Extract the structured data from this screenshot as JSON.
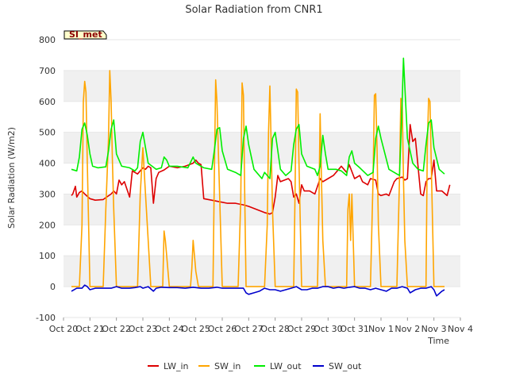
{
  "chart_data": {
    "type": "line",
    "title": "Solar Radiation from CNR1",
    "badge": "SI_met",
    "xlabel": "Time",
    "ylabel": "Solar Radiation (W/m2)",
    "xlim": [
      0,
      15
    ],
    "ylim": [
      -100,
      800
    ],
    "x_tick_labels": [
      "Oct 20",
      "Oct 21",
      "Oct 22",
      "Oct 23",
      "Oct 24",
      "Oct 25",
      "Oct 26",
      "Oct 27",
      "Oct 28",
      "Oct 29",
      "Oct 30",
      "Oct 31",
      "Nov 1",
      "Nov 2",
      "Nov 3",
      "Nov 4"
    ],
    "y_ticks": [
      -100,
      0,
      100,
      200,
      300,
      400,
      500,
      600,
      700,
      800
    ],
    "grid": "horizontal bands",
    "legend_position": "bottom",
    "colors": {
      "LW_in": "#dd0000",
      "SW_in": "#ffa500",
      "LW_out": "#00ee00",
      "SW_out": "#0000cc",
      "band": "#f0f0f0",
      "badge_fill": "#ffffcc"
    },
    "series": [
      {
        "name": "LW_in",
        "x": [
          0.3,
          0.35,
          0.45,
          0.5,
          0.6,
          0.7,
          0.8,
          1.0,
          1.2,
          1.5,
          1.8,
          1.9,
          2.0,
          2.1,
          2.2,
          2.3,
          2.5,
          2.6,
          2.8,
          3.0,
          3.1,
          3.2,
          3.3,
          3.4,
          3.5,
          3.6,
          3.8,
          4.0,
          4.3,
          4.6,
          4.9,
          5.0,
          5.1,
          5.2,
          5.3,
          5.6,
          5.9,
          6.2,
          6.5,
          6.8,
          7.0,
          7.3,
          7.6,
          7.8,
          7.9,
          8.0,
          8.1,
          8.2,
          8.5,
          8.6,
          8.7,
          8.8,
          8.9,
          9.0,
          9.1,
          9.3,
          9.5,
          9.7,
          9.8,
          10.0,
          10.2,
          10.4,
          10.5,
          10.6,
          10.7,
          10.8,
          11.0,
          11.2,
          11.3,
          11.5,
          11.6,
          11.8,
          11.9,
          12.0,
          12.2,
          12.3,
          12.5,
          12.6,
          12.8,
          12.9,
          13.0,
          13.1,
          13.2,
          13.3,
          13.5,
          13.6,
          13.7,
          13.8,
          13.9,
          14.0,
          14.1,
          14.3,
          14.5,
          14.6
        ],
        "y": [
          295,
          300,
          325,
          290,
          305,
          310,
          300,
          285,
          280,
          282,
          300,
          310,
          300,
          345,
          330,
          340,
          290,
          375,
          365,
          385,
          380,
          390,
          385,
          270,
          350,
          370,
          378,
          390,
          385,
          390,
          400,
          410,
          400,
          395,
          285,
          280,
          275,
          270,
          270,
          265,
          260,
          250,
          240,
          235,
          240,
          290,
          360,
          340,
          350,
          340,
          290,
          300,
          270,
          330,
          310,
          310,
          300,
          350,
          340,
          350,
          360,
          380,
          390,
          380,
          370,
          395,
          350,
          360,
          340,
          330,
          350,
          345,
          300,
          295,
          300,
          295,
          340,
          350,
          355,
          345,
          350,
          525,
          470,
          480,
          300,
          295,
          340,
          350,
          350,
          410,
          310,
          310,
          295,
          330
        ]
      },
      {
        "name": "SW_in",
        "x": [
          0.3,
          0.6,
          0.7,
          0.75,
          0.8,
          0.85,
          0.9,
          1.0,
          1.1,
          1.3,
          1.5,
          1.6,
          1.7,
          1.75,
          1.8,
          1.85,
          1.9,
          2.0,
          2.1,
          2.2,
          2.3,
          2.5,
          2.6,
          2.8,
          2.9,
          3.0,
          3.1,
          3.2,
          3.3,
          3.5,
          3.6,
          3.7,
          3.75,
          3.8,
          3.85,
          3.9,
          4.0,
          4.2,
          4.5,
          4.7,
          4.8,
          4.85,
          4.9,
          5.0,
          5.1,
          5.2,
          5.3,
          5.5,
          5.6,
          5.65,
          5.7,
          5.75,
          5.8,
          6.0,
          6.4,
          6.6,
          6.7,
          6.75,
          6.8,
          6.85,
          6.9,
          7.0,
          7.2,
          7.4,
          7.6,
          7.7,
          7.75,
          7.8,
          7.85,
          7.9,
          8.0,
          8.2,
          8.4,
          8.6,
          8.7,
          8.75,
          8.8,
          8.85,
          8.9,
          9.0,
          9.2,
          9.5,
          9.6,
          9.65,
          9.7,
          9.75,
          9.8,
          9.9,
          10.0,
          10.3,
          10.5,
          10.7,
          10.75,
          10.8,
          10.85,
          10.9,
          11.0,
          11.2,
          11.4,
          11.6,
          11.7,
          11.75,
          11.8,
          11.85,
          11.9,
          12.0,
          12.2,
          12.4,
          12.6,
          12.7,
          12.75,
          12.8,
          12.85,
          12.9,
          13.0,
          13.2,
          13.4,
          13.6,
          13.7,
          13.75,
          13.8,
          13.85,
          13.9,
          14.0,
          14.2,
          14.4
        ],
        "y": [
          0,
          0,
          200,
          600,
          665,
          630,
          400,
          0,
          0,
          0,
          0,
          250,
          480,
          700,
          600,
          400,
          250,
          0,
          0,
          0,
          0,
          0,
          0,
          0,
          300,
          450,
          300,
          150,
          0,
          0,
          0,
          0,
          0,
          180,
          150,
          100,
          0,
          0,
          0,
          0,
          0,
          60,
          150,
          50,
          0,
          0,
          0,
          0,
          0,
          0,
          350,
          670,
          600,
          0,
          0,
          0,
          280,
          660,
          620,
          300,
          0,
          0,
          0,
          0,
          0,
          200,
          500,
          650,
          450,
          250,
          0,
          0,
          0,
          0,
          0,
          300,
          640,
          630,
          400,
          0,
          0,
          0,
          0,
          250,
          560,
          350,
          150,
          0,
          0,
          0,
          0,
          0,
          250,
          300,
          150,
          300,
          0,
          0,
          0,
          0,
          350,
          620,
          625,
          450,
          200,
          0,
          0,
          0,
          0,
          350,
          610,
          600,
          350,
          150,
          0,
          0,
          0,
          0,
          0,
          450,
          610,
          600,
          400,
          0,
          0,
          0
        ]
      },
      {
        "name": "LW_out",
        "x": [
          0.3,
          0.5,
          0.6,
          0.7,
          0.8,
          0.9,
          1.0,
          1.1,
          1.3,
          1.6,
          1.7,
          1.8,
          1.9,
          2.0,
          2.2,
          2.5,
          2.7,
          2.8,
          2.9,
          3.0,
          3.2,
          3.5,
          3.7,
          3.8,
          3.9,
          4.0,
          4.3,
          4.7,
          4.9,
          5.0,
          5.3,
          5.6,
          5.7,
          5.8,
          5.9,
          6.0,
          6.2,
          6.5,
          6.7,
          6.8,
          6.9,
          7.0,
          7.2,
          7.5,
          7.6,
          7.7,
          7.8,
          7.9,
          8.0,
          8.2,
          8.4,
          8.6,
          8.7,
          8.8,
          8.9,
          9.0,
          9.2,
          9.5,
          9.6,
          9.7,
          9.8,
          9.9,
          10.0,
          10.3,
          10.5,
          10.7,
          10.8,
          10.9,
          11.0,
          11.2,
          11.5,
          11.7,
          11.8,
          11.9,
          12.0,
          12.3,
          12.6,
          12.7,
          12.8,
          12.85,
          12.9,
          13.0,
          13.2,
          13.4,
          13.6,
          13.7,
          13.8,
          13.9,
          14.0,
          14.2,
          14.4
        ],
        "y": [
          380,
          375,
          420,
          510,
          530,
          490,
          430,
          390,
          385,
          388,
          440,
          510,
          540,
          430,
          390,
          385,
          375,
          385,
          470,
          500,
          400,
          380,
          385,
          420,
          410,
          390,
          390,
          385,
          420,
          400,
          385,
          380,
          440,
          510,
          515,
          440,
          380,
          370,
          360,
          480,
          520,
          460,
          380,
          350,
          370,
          360,
          350,
          480,
          500,
          380,
          360,
          375,
          460,
          510,
          525,
          430,
          390,
          380,
          360,
          390,
          490,
          430,
          380,
          380,
          375,
          360,
          420,
          440,
          400,
          385,
          360,
          370,
          480,
          520,
          480,
          380,
          365,
          360,
          600,
          740,
          650,
          480,
          400,
          380,
          375,
          460,
          530,
          540,
          450,
          380,
          365
        ]
      },
      {
        "name": "SW_out",
        "x": [
          0.3,
          0.5,
          0.7,
          0.8,
          0.9,
          1.0,
          1.2,
          1.5,
          1.8,
          2.0,
          2.2,
          2.5,
          2.7,
          2.9,
          3.0,
          3.2,
          3.4,
          3.5,
          3.7,
          4.0,
          4.3,
          4.6,
          4.9,
          5.2,
          5.5,
          5.8,
          6.0,
          6.3,
          6.6,
          6.8,
          6.9,
          7.0,
          7.2,
          7.4,
          7.6,
          7.8,
          8.0,
          8.2,
          8.4,
          8.6,
          8.8,
          9.0,
          9.2,
          9.4,
          9.6,
          9.8,
          10.0,
          10.2,
          10.4,
          10.6,
          10.8,
          11.0,
          11.2,
          11.4,
          11.6,
          11.8,
          12.0,
          12.2,
          12.4,
          12.6,
          12.8,
          13.0,
          13.1,
          13.3,
          13.5,
          13.7,
          13.9,
          14.0,
          14.1,
          14.3,
          14.4
        ],
        "y": [
          -15,
          -5,
          -5,
          5,
          0,
          -10,
          -5,
          -5,
          -5,
          0,
          -5,
          -5,
          -3,
          0,
          -5,
          0,
          -15,
          -5,
          -2,
          -3,
          -3,
          -5,
          -2,
          -5,
          -5,
          -2,
          -5,
          -5,
          -5,
          -5,
          -20,
          -25,
          -20,
          -15,
          -5,
          -10,
          -10,
          -15,
          -10,
          -5,
          0,
          -10,
          -10,
          -5,
          -5,
          0,
          0,
          -5,
          -2,
          -5,
          -2,
          0,
          -5,
          -5,
          -10,
          -5,
          -10,
          -15,
          -5,
          -5,
          0,
          -5,
          -20,
          -10,
          -5,
          -5,
          0,
          -10,
          -30,
          -15,
          -10
        ]
      }
    ]
  }
}
